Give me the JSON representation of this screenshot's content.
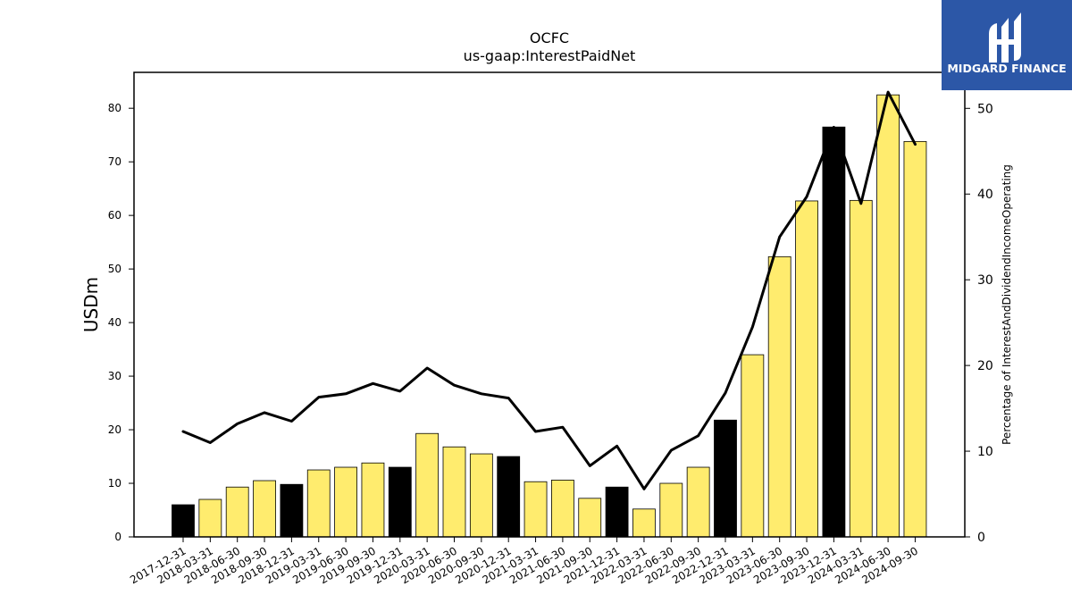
{
  "chart_data": {
    "type": "bar",
    "title": "OCFC",
    "subtitle": "us-gaap:InterestPaidNet",
    "ylabel": "USDm",
    "ylabel_right": "Percentage of InterestAndDividendIncomeOperating",
    "ylim": [
      0,
      86.7
    ],
    "ylim_right": [
      0,
      54.2
    ],
    "yticks": [
      0,
      10,
      20,
      30,
      40,
      50,
      60,
      70,
      80
    ],
    "yticks_right": [
      0,
      10,
      20,
      30,
      40,
      50
    ],
    "grid": false,
    "categories": [
      "2017-12-31",
      "2018-03-31",
      "2018-06-30",
      "2018-09-30",
      "2018-12-31",
      "2019-03-31",
      "2019-06-30",
      "2019-09-30",
      "2019-12-31",
      "2020-03-31",
      "2020-06-30",
      "2020-09-30",
      "2020-12-31",
      "2021-03-31",
      "2021-06-30",
      "2021-09-30",
      "2021-12-31",
      "2022-03-31",
      "2022-06-30",
      "2022-09-30",
      "2022-12-31",
      "2023-03-31",
      "2023-06-30",
      "2023-09-30",
      "2023-12-31",
      "2024-03-31",
      "2024-06-30",
      "2024-09-30"
    ],
    "series": [
      {
        "type": "bar",
        "values": [
          6.0,
          7.0,
          9.3,
          10.5,
          9.8,
          12.5,
          13.0,
          13.8,
          13.0,
          19.3,
          16.8,
          15.5,
          15.0,
          10.3,
          10.6,
          7.2,
          9.3,
          5.2,
          10.0,
          13.0,
          21.8,
          34.0,
          52.3,
          62.7,
          76.5,
          62.8,
          82.5,
          73.8
        ],
        "colors": [
          "#000000",
          "#ffec6e",
          "#ffec6e",
          "#ffec6e",
          "#000000",
          "#ffec6e",
          "#ffec6e",
          "#ffec6e",
          "#000000",
          "#ffec6e",
          "#ffec6e",
          "#ffec6e",
          "#000000",
          "#ffec6e",
          "#ffec6e",
          "#ffec6e",
          "#000000",
          "#ffec6e",
          "#ffec6e",
          "#ffec6e",
          "#000000",
          "#ffec6e",
          "#ffec6e",
          "#ffec6e",
          "#000000",
          "#ffec6e",
          "#ffec6e",
          "#ffec6e"
        ]
      },
      {
        "type": "line",
        "axis": "right",
        "values": [
          12.3,
          11.0,
          13.2,
          14.5,
          13.5,
          16.3,
          16.7,
          17.9,
          17.0,
          19.7,
          17.7,
          16.7,
          16.2,
          12.3,
          12.8,
          8.3,
          10.6,
          5.6,
          10.1,
          11.8,
          16.8,
          24.5,
          35.0,
          39.7,
          47.8,
          38.9,
          51.9,
          45.8
        ],
        "color": "#000000"
      }
    ]
  },
  "logo": {
    "text": "MIDGARD FINANCE",
    "bg_color": "#2c57a7"
  }
}
